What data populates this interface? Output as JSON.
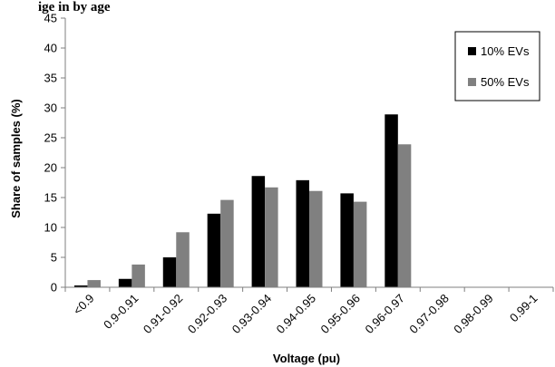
{
  "caption_fragment": "ige in     by         age",
  "chart_data": {
    "type": "bar",
    "title": "",
    "xlabel": "Voltage (pu)",
    "ylabel": "Share of samples (%)",
    "ylim": [
      0,
      45
    ],
    "yticks": [
      "0",
      "5",
      "10",
      "15",
      "20",
      "25",
      "30",
      "35",
      "40",
      "45"
    ],
    "grid": false,
    "legend_position": "top-right",
    "categories": [
      "<0.9",
      "0.9-0.91",
      "0.91-0.92",
      "0.92-0.93",
      "0.93-0.94",
      "0.94-0.95",
      "0.95-0.96",
      "0.96-0.97",
      "0.97-0.98",
      "0.98-0.99",
      "0.99-1"
    ],
    "series": [
      {
        "name": "10% EVs",
        "color": "#000000",
        "values": [
          0.3,
          1.4,
          5.0,
          12.3,
          18.6,
          17.9,
          15.7,
          28.9,
          0,
          0,
          0
        ]
      },
      {
        "name": "50% EVs",
        "color": "#808080",
        "values": [
          1.2,
          3.8,
          9.2,
          14.6,
          16.7,
          16.1,
          14.3,
          23.9,
          0,
          0,
          0
        ]
      }
    ]
  }
}
